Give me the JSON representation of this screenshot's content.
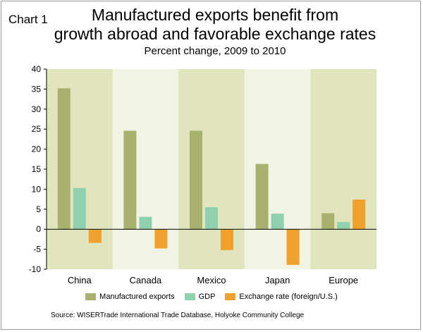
{
  "header": {
    "chart_label": "Chart 1",
    "title_line1": "Manufactured exports benefit from",
    "title_line2": "growth abroad and favorable exchange rates",
    "subtitle": "Percent change, 2009 to 2010"
  },
  "source": "Source: WISERTrade International Trade Database, Holyoke Community College",
  "colors": {
    "band_dark": "#e0e5be",
    "band_light": "#f2f4e3",
    "manufactured_exports": "#a8b26e",
    "gdp": "#8fd0ae",
    "exchange_rate": "#f0a12b"
  },
  "chart_data": {
    "type": "bar",
    "categories": [
      "China",
      "Canada",
      "Mexico",
      "Japan",
      "Europe"
    ],
    "series": [
      {
        "name": "Manufactured exports",
        "values": [
          35.2,
          24.6,
          24.6,
          16.3,
          4.0
        ]
      },
      {
        "name": "GDP",
        "values": [
          10.3,
          3.1,
          5.5,
          3.9,
          1.8
        ]
      },
      {
        "name": "Exchange rate (foreign/U.S.)",
        "values": [
          -3.4,
          -4.8,
          -5.2,
          -8.9,
          7.4
        ]
      }
    ],
    "ylim": [
      -10,
      40
    ],
    "yticks": [
      -10,
      -5,
      0,
      5,
      10,
      15,
      20,
      25,
      30,
      35,
      40
    ],
    "legend_position": "bottom",
    "grid": false
  }
}
